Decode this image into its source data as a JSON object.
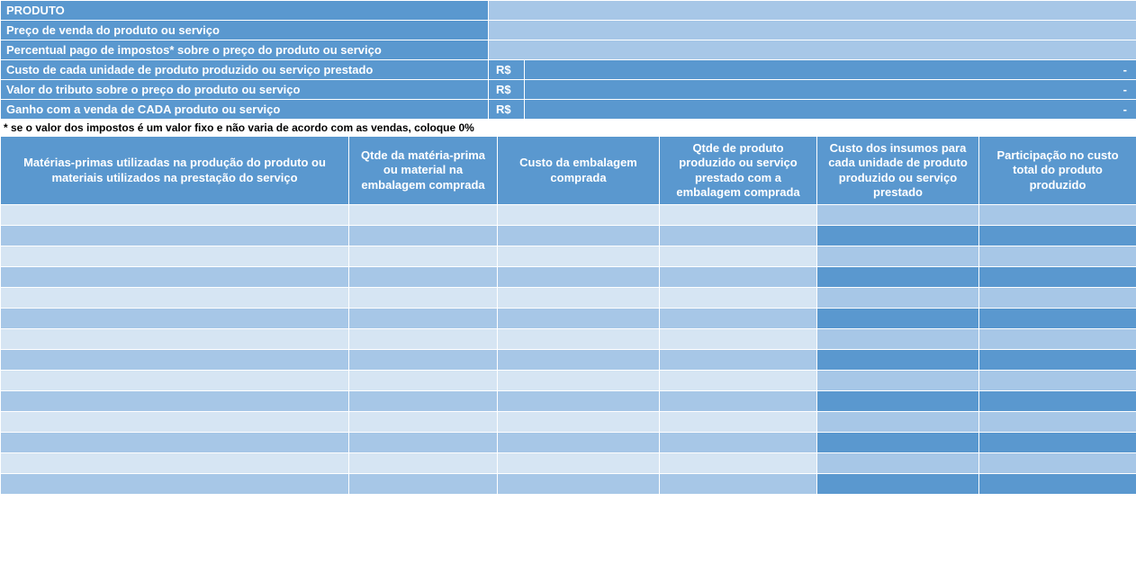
{
  "colors": {
    "header_bg": "#5a98cf",
    "header_text": "#ffffff",
    "row_light": "#d6e5f3",
    "row_med": "#a7c7e7",
    "row_strong": "#5a98cf",
    "border": "#ffffff",
    "footnote_text": "#000000",
    "footnote_bg": "#ffffff"
  },
  "top": {
    "rows": [
      {
        "label": "PRODUTO",
        "type": "product",
        "value": ""
      },
      {
        "label": "Preço de venda do produto ou serviço",
        "type": "input",
        "value": ""
      },
      {
        "label": "Percentual pago de impostos* sobre o preço do produto ou serviço",
        "type": "input",
        "value": ""
      },
      {
        "label": "Custo de cada unidade de produto produzido ou serviço prestado",
        "type": "calc",
        "currency": "R$",
        "value": "-"
      },
      {
        "label": "Valor do tributo sobre o preço do produto ou serviço",
        "type": "calc",
        "currency": "R$",
        "value": "-"
      },
      {
        "label": "Ganho com a venda de CADA produto ou serviço",
        "type": "calc",
        "currency": "R$",
        "value": "-"
      }
    ],
    "footnote": "* se o valor dos impostos é um valor fixo e não varia de acordo com as vendas, coloque 0%"
  },
  "columns": {
    "widths": [
      387,
      165,
      180,
      175,
      180,
      175
    ],
    "headers": [
      "Matérias-primas utilizadas na produção do produto ou materiais utilizados na prestação do serviço",
      "Qtde da matéria-prima ou material na embalagem comprada",
      "Custo da embalagem comprada",
      "Qtde de produto produzido ou serviço prestado com a embalagem comprada",
      "Custo dos insumos para cada unidade de produto produzido ou serviço prestado",
      "Participação no custo total do produto produzido"
    ]
  },
  "body": {
    "row_count": 14,
    "col_shades_odd": [
      "c-light",
      "c-light",
      "c-light",
      "c-light",
      "c-med",
      "c-med"
    ],
    "col_shades_even": [
      "c-med",
      "c-med",
      "c-med",
      "c-med",
      "c-strong",
      "c-strong"
    ],
    "rows": [
      [
        "",
        "",
        "",
        "",
        "",
        ""
      ],
      [
        "",
        "",
        "",
        "",
        "",
        ""
      ],
      [
        "",
        "",
        "",
        "",
        "",
        ""
      ],
      [
        "",
        "",
        "",
        "",
        "",
        ""
      ],
      [
        "",
        "",
        "",
        "",
        "",
        ""
      ],
      [
        "",
        "",
        "",
        "",
        "",
        ""
      ],
      [
        "",
        "",
        "",
        "",
        "",
        ""
      ],
      [
        "",
        "",
        "",
        "",
        "",
        ""
      ],
      [
        "",
        "",
        "",
        "",
        "",
        ""
      ],
      [
        "",
        "",
        "",
        "",
        "",
        ""
      ],
      [
        "",
        "",
        "",
        "",
        "",
        ""
      ],
      [
        "",
        "",
        "",
        "",
        "",
        ""
      ],
      [
        "",
        "",
        "",
        "",
        "",
        ""
      ],
      [
        "",
        "",
        "",
        "",
        "",
        ""
      ]
    ]
  }
}
